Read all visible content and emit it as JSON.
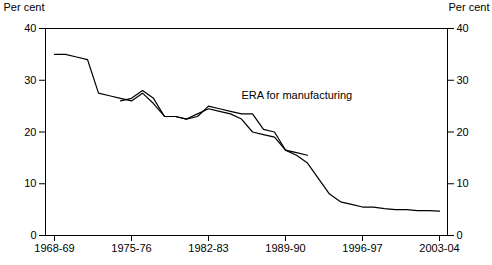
{
  "chart_data": {
    "type": "line",
    "categories": [
      "1968-69",
      null,
      null,
      null,
      null,
      null,
      null,
      "1975-76",
      null,
      null,
      null,
      null,
      null,
      null,
      "1982-83",
      null,
      null,
      null,
      null,
      null,
      null,
      "1989-90",
      null,
      null,
      null,
      null,
      null,
      null,
      "1996-97",
      null,
      null,
      null,
      null,
      null,
      null,
      "2003-04"
    ],
    "series": [
      {
        "color": "#000000",
        "values": [
          35.0,
          35.0,
          34.5,
          34.0,
          27.5,
          27.0,
          26.5,
          26.0,
          27.5,
          25.5,
          23.0,
          23.0,
          22.5,
          23.5,
          24.5,
          24.0,
          23.5,
          22.5,
          20.0,
          19.5,
          19.0,
          16.5,
          15.5,
          14.0,
          11.0,
          8.0,
          6.5,
          6.0,
          5.5,
          5.5,
          5.2,
          5.0,
          5.0,
          4.8,
          4.8,
          4.7
        ]
      },
      {
        "color": "#000000",
        "values": [
          null,
          null,
          null,
          null,
          null,
          null,
          26.0,
          26.5,
          28.0,
          26.5,
          23.0,
          23.0,
          22.5,
          23.0,
          25.0,
          24.5,
          24.0,
          23.5,
          23.5,
          20.5,
          20.0,
          16.5,
          16.0,
          15.5,
          null,
          null,
          null,
          null,
          null,
          null,
          null,
          null,
          null,
          null,
          null,
          null
        ]
      }
    ],
    "annotations": [
      {
        "text": "ERA for manufacturing",
        "x": 17,
        "y": 27.0,
        "color": "#000000"
      }
    ],
    "ylabel": "Per cent",
    "y2label": "Per cent",
    "ylim": [
      0,
      40
    ],
    "yticks": [
      0,
      10,
      20,
      30,
      40
    ]
  }
}
